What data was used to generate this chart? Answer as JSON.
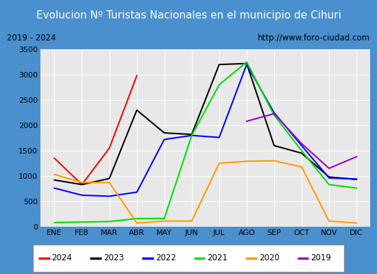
{
  "title": "Evolucion Nº Turistas Nacionales en el municipio de Cihuri",
  "subtitle_left": "2019 - 2024",
  "subtitle_right": "http://www.foro-ciudad.com",
  "months": [
    "ENE",
    "FEB",
    "MAR",
    "ABR",
    "MAY",
    "JUN",
    "JUL",
    "AGO",
    "SEP",
    "OCT",
    "NOV",
    "DIC"
  ],
  "ylim": [
    0,
    3500
  ],
  "yticks": [
    0,
    500,
    1000,
    1500,
    2000,
    2500,
    3000,
    3500
  ],
  "series": {
    "2024": {
      "color": "#ff0000",
      "linewidth": 1.5,
      "data": [
        1350,
        830,
        1550,
        2980,
        null,
        null,
        null,
        null,
        null,
        null,
        null,
        null
      ]
    },
    "2023": {
      "color": "#000000",
      "linewidth": 1.5,
      "data": [
        920,
        830,
        950,
        2300,
        1850,
        1820,
        3200,
        3220,
        1600,
        1450,
        980,
        930
      ]
    },
    "2022": {
      "color": "#0000ff",
      "linewidth": 1.5,
      "data": [
        760,
        620,
        600,
        680,
        1720,
        1800,
        1760,
        3200,
        2250,
        1600,
        960,
        940
      ]
    },
    "2021": {
      "color": "#00dd00",
      "linewidth": 1.5,
      "data": [
        80,
        90,
        100,
        160,
        160,
        1800,
        2800,
        3250,
        2200,
        1500,
        830,
        760
      ]
    },
    "2020": {
      "color": "#ff9900",
      "linewidth": 1.5,
      "data": [
        1030,
        870,
        870,
        70,
        110,
        110,
        1250,
        1290,
        1300,
        1180,
        110,
        70
      ]
    },
    "2019": {
      "color": "#9900cc",
      "linewidth": 1.5,
      "data": [
        null,
        null,
        null,
        null,
        null,
        null,
        null,
        2080,
        2230,
        1640,
        1150,
        1380
      ]
    }
  },
  "legend_order": [
    "2024",
    "2023",
    "2022",
    "2021",
    "2020",
    "2019"
  ],
  "title_bg_color": "#4a8fce",
  "title_color": "#ffffff",
  "title_fontsize": 11,
  "plot_bg_color": "#e8e8e8",
  "outer_bg_color": "#4a8fce",
  "inner_bg_color": "#ffffff",
  "subtitle_bg_color": "#e0e0e0",
  "subtitle_fontsize": 8.5,
  "axis_fontsize": 8,
  "legend_fontsize": 8.5,
  "grid_color": "#ffffff",
  "grid_linewidth": 0.8
}
